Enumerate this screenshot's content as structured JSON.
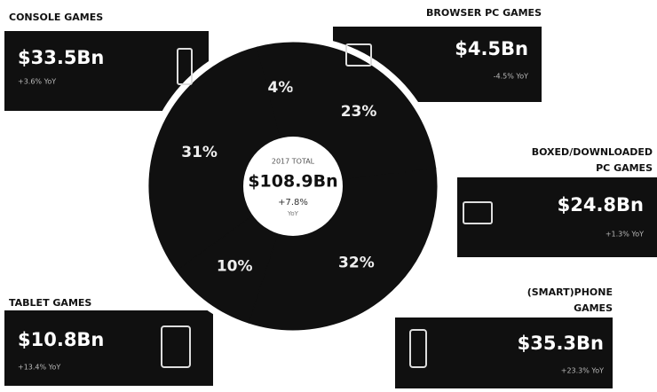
{
  "chart_data": {
    "type": "pie",
    "categories": [
      [
        "CONSOLE GAMES"
      ],
      [
        "BROWSER PC GAMES"
      ],
      [
        "BOXED/DOWNLOADED",
        "PC GAMES"
      ],
      [
        "(SMART)PHONE",
        "GAMES"
      ],
      [
        "TABLET GAMES"
      ]
    ],
    "values": [
      31,
      4,
      23,
      32,
      10
    ],
    "value_labels": [
      "31%",
      "4%",
      "23%",
      "32%",
      "10%"
    ],
    "amounts": [
      "$33.5Bn",
      "$4.5Bn",
      "$24.8Bn",
      "$35.3Bn",
      "$10.8Bn"
    ],
    "growth": [
      "+3.6% YoY",
      "-4.5% YoY",
      "+1.3% YoY",
      "+23.3% YoY",
      "+13.4% YoY"
    ],
    "color": "#101010",
    "center": {
      "label": "2017 TOTAL",
      "total": "$108.9Bn",
      "growth": "+7.8%",
      "period": "YoY"
    }
  }
}
